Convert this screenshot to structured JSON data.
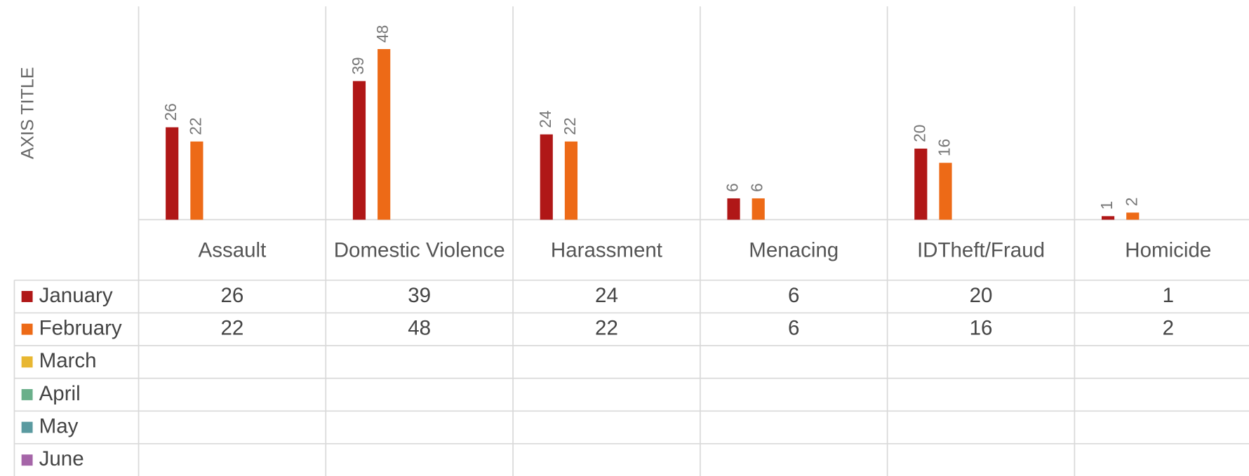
{
  "chart_data": {
    "type": "bar",
    "y_axis_title": "AXIS TITLE",
    "categories": [
      "Assault",
      "Domestic Violence",
      "Harassment",
      "Menacing",
      "IDTheft/Fraud",
      "Homicide"
    ],
    "series": [
      {
        "name": "January",
        "color": "#b01717",
        "values": [
          26,
          39,
          24,
          6,
          20,
          1
        ]
      },
      {
        "name": "February",
        "color": "#ed6a17",
        "values": [
          22,
          48,
          22,
          6,
          16,
          2
        ]
      },
      {
        "name": "March",
        "color": "#e8b731",
        "values": [
          null,
          null,
          null,
          null,
          null,
          null
        ]
      },
      {
        "name": "April",
        "color": "#6aaf8a",
        "values": [
          null,
          null,
          null,
          null,
          null,
          null
        ]
      },
      {
        "name": "May",
        "color": "#5a9aa0",
        "values": [
          null,
          null,
          null,
          null,
          null,
          null
        ]
      },
      {
        "name": "June",
        "color": "#a565a8",
        "values": [
          null,
          null,
          null,
          null,
          null,
          null
        ]
      }
    ],
    "ylim": [
      0,
      60
    ],
    "data_table": true
  }
}
